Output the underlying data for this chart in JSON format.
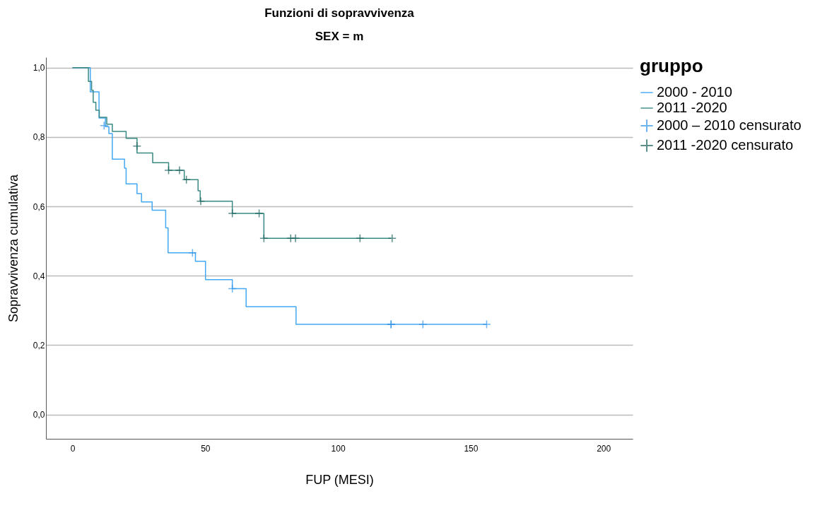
{
  "chart_data": {
    "type": "step",
    "title": "Funzioni di sopravvivenza",
    "subtitle": "SEX = m",
    "xlabel": "FUP (MESI)",
    "ylabel": "Sopravvivenza cumulativa",
    "legend_title": "gruppo",
    "legend": "right",
    "grid": "y",
    "line_style": "solid",
    "xlim": [
      -10,
      211
    ],
    "xticks": [
      0,
      50,
      100,
      150,
      200
    ],
    "ylim": [
      -0.07,
      1.03
    ],
    "yticks": [
      {
        "value": 0,
        "label": "0,0"
      },
      {
        "value": 0.2,
        "label": "0,2"
      },
      {
        "value": 0.4,
        "label": "0,4"
      },
      {
        "value": 0.6,
        "label": "0,6"
      },
      {
        "value": 0.8,
        "label": "0,8"
      },
      {
        "value": 1,
        "label": "1,0"
      }
    ],
    "series": [
      {
        "name": "2000 - 2010",
        "type": "step",
        "marker": "none",
        "color": "#45a8f2",
        "x": [
          0,
          6.7,
          10,
          12.4,
          13.7,
          15,
          19.6,
          20.2,
          24.3,
          26,
          30,
          35.1,
          36,
          46.3,
          50.1,
          60.2,
          65.4,
          84.2,
          156
        ],
        "values": [
          1,
          0.93,
          0.855,
          0.83,
          0.81,
          0.736,
          0.71,
          0.665,
          0.637,
          0.613,
          0.589,
          0.538,
          0.466,
          0.442,
          0.389,
          0.363,
          0.311,
          0.26,
          0.26
        ]
      },
      {
        "name": "2011 -2020",
        "type": "step",
        "marker": "none",
        "color": "#3a8a84",
        "x": [
          0,
          6,
          7.2,
          7.8,
          8.8,
          10.1,
          12.9,
          15,
          20.2,
          24.3,
          30.2,
          36.2,
          42.1,
          47.3,
          48.1,
          60.2,
          72.1,
          120
        ],
        "values": [
          1,
          0.96,
          0.935,
          0.9,
          0.877,
          0.857,
          0.837,
          0.816,
          0.796,
          0.754,
          0.726,
          0.704,
          0.677,
          0.645,
          0.615,
          0.58,
          0.508,
          0.508
        ]
      },
      {
        "name": "2000 – 2010 censurato",
        "type": "scatter",
        "marker": "cross",
        "color": "#2f93ea",
        "x": [
          11.9,
          45.2,
          60.2,
          120,
          120,
          132,
          156
        ],
        "values": [
          0.833,
          0.466,
          0.363,
          0.26,
          0.26,
          0.26,
          0.26
        ]
      },
      {
        "name": "2011 -2020  censurato",
        "type": "scatter",
        "marker": "cross",
        "color": "#135f5a",
        "x": [
          24.3,
          36.2,
          40.3,
          42.9,
          48.3,
          60.2,
          70.3,
          72.1,
          82.2,
          84,
          108.3,
          120.4
        ],
        "values": [
          0.774,
          0.704,
          0.704,
          0.677,
          0.615,
          0.58,
          0.58,
          0.508,
          0.508,
          0.508,
          0.508,
          0.508
        ]
      }
    ]
  }
}
